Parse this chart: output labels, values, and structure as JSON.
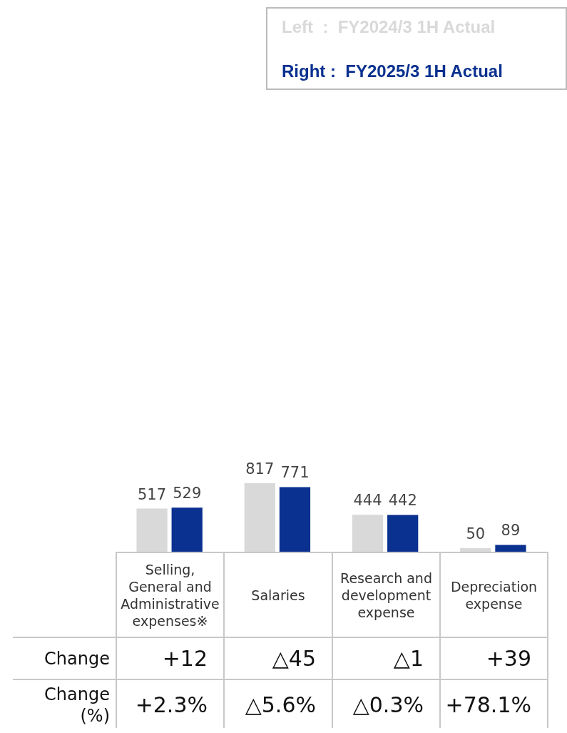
{
  "chart_data": {
    "type": "bar",
    "categories": [
      "Selling, General and Administrative expenses※",
      "Salaries",
      "Research and development expense",
      "Depreciation expense"
    ],
    "series": [
      {
        "name": "Left  :  FY2024/3 1H Actual",
        "color": "#d9d9d9",
        "values": [
          517,
          817,
          444,
          50
        ]
      },
      {
        "name": "Right :  FY2025/3 1H Actual",
        "color": "#0a318f",
        "values": [
          529,
          771,
          442,
          89
        ]
      }
    ],
    "data_labels": true,
    "legend": "top right",
    "annotations": [
      "Change",
      "+12",
      "△45",
      "△1",
      "+39",
      "Change\n(%)",
      "+2.3%",
      "△5.6%",
      "△0.3%",
      "+78.1%"
    ]
  }
}
